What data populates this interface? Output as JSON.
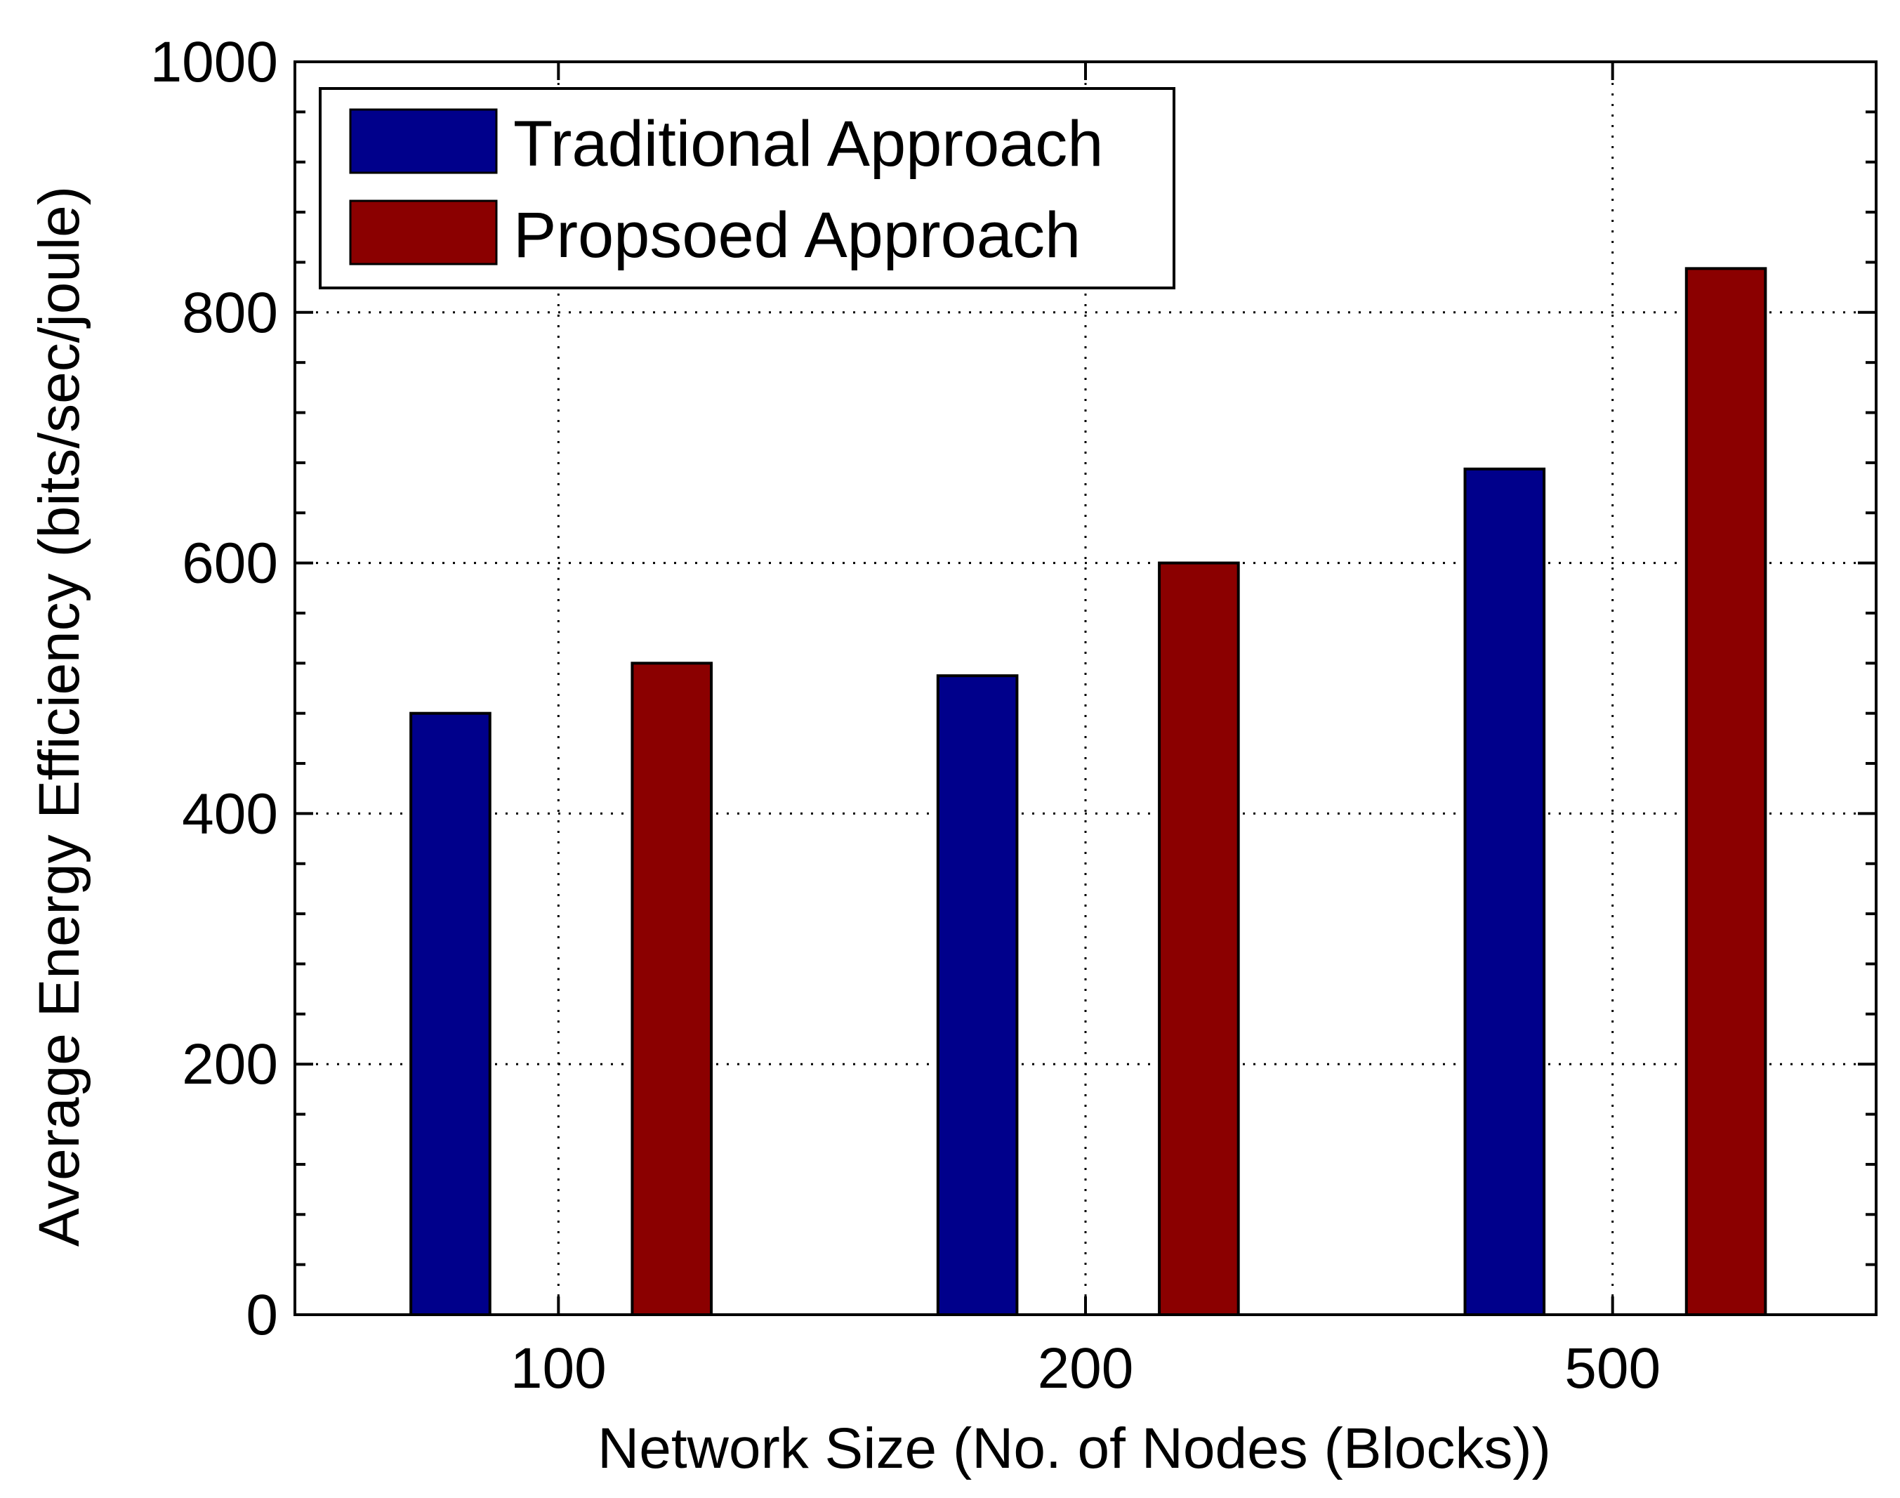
{
  "chart_data": {
    "type": "bar",
    "title": "",
    "xlabel": "Network Size (No. of Nodes (Blocks))",
    "ylabel": "Average Energy Efficiency (bits/sec/joule)",
    "categories": [
      "100",
      "200",
      "500"
    ],
    "series": [
      {
        "name": "Traditional Approach",
        "color": "#00008b",
        "values": [
          480,
          510,
          675
        ]
      },
      {
        "name": "Propsoed Approach",
        "color": "#8b0000",
        "values": [
          520,
          600,
          835
        ]
      }
    ],
    "ylim": [
      0,
      1000
    ],
    "yticks": [
      0,
      200,
      400,
      600,
      800,
      1000
    ],
    "ytick_labels": [
      "0",
      "200",
      "400",
      "600",
      "800",
      "1000"
    ],
    "xlim": [
      0.5,
      3.5
    ],
    "grid": true,
    "grid_style": "dotted",
    "legend": {
      "position": "top-left"
    }
  }
}
